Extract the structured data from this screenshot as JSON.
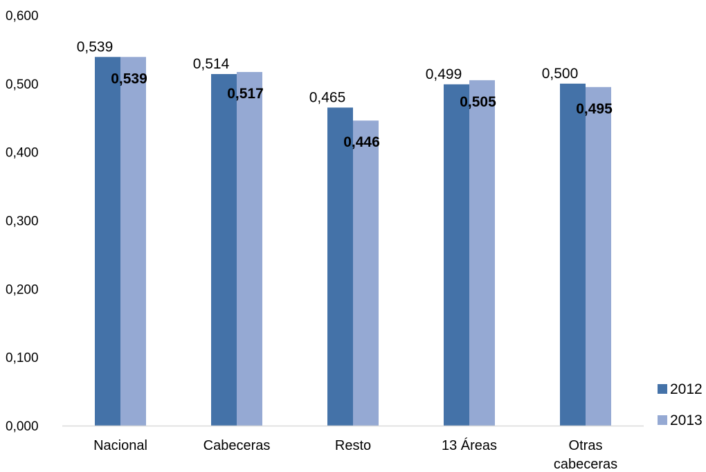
{
  "chart_data": {
    "type": "bar",
    "categories": [
      "Nacional",
      "Cabeceras",
      "Resto",
      "13 Áreas",
      "Otras cabeceras"
    ],
    "category_lines": [
      [
        "Nacional"
      ],
      [
        "Cabeceras"
      ],
      [
        "Resto"
      ],
      [
        "13 Áreas"
      ],
      [
        "Otras",
        "cabeceras"
      ]
    ],
    "series": [
      {
        "name": "2012",
        "values": [
          0.539,
          0.514,
          0.465,
          0.499,
          0.5
        ],
        "labels": [
          "0,539",
          "0,514",
          "0,465",
          "0,499",
          "0,500"
        ],
        "color": "#4472a8"
      },
      {
        "name": "2013",
        "values": [
          0.539,
          0.517,
          0.446,
          0.505,
          0.495
        ],
        "labels": [
          "0,539",
          "0,517",
          "0,446",
          "0,505",
          "0,495"
        ],
        "color": "#95a9d3"
      }
    ],
    "yticks": [
      0,
      0.1,
      0.2,
      0.3,
      0.4,
      0.5,
      0.6
    ],
    "ytick_labels": [
      "0,000",
      "0,100",
      "0,200",
      "0,300",
      "0,400",
      "0,500",
      "0,600"
    ],
    "ylim": [
      0,
      0.6
    ],
    "grid": false,
    "legend_position": "bottom-right",
    "axis_color": "#d9d9d9"
  }
}
